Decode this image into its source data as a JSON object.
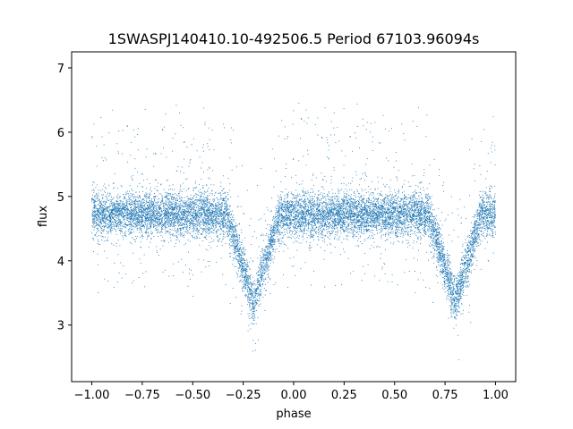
{
  "chart_data": {
    "type": "scatter",
    "title": "1SWASPJ140410.10-492506.5 Period 67103.96094s",
    "xlabel": "phase",
    "ylabel": "flux",
    "xlim": [
      -1.1,
      1.1
    ],
    "ylim": [
      2.12,
      7.25
    ],
    "grid": false,
    "legend": "none",
    "x_ticks": [
      -1.0,
      -0.75,
      -0.5,
      -0.25,
      0.0,
      0.25,
      0.5,
      0.75,
      1.0
    ],
    "x_tick_labels": [
      "−1.00",
      "−0.75",
      "−0.50",
      "−0.25",
      "0.00",
      "0.25",
      "0.50",
      "0.75",
      "1.00"
    ],
    "y_ticks": [
      3,
      4,
      5,
      6,
      7
    ],
    "y_tick_labels": [
      "3",
      "4",
      "5",
      "6",
      "7"
    ],
    "point_color": "#1f77b4",
    "series": [
      {
        "baseline_flux": 4.72,
        "scatter_sigma": 0.17,
        "eclipses": [
          {
            "phase_center": -0.2,
            "min_flux": 3.35,
            "half_width": 0.13
          },
          {
            "phase_center": 0.8,
            "min_flux": 3.35,
            "half_width": 0.13
          }
        ],
        "x_range": [
          -1.0,
          1.0
        ],
        "n_points": 12000
      }
    ]
  }
}
